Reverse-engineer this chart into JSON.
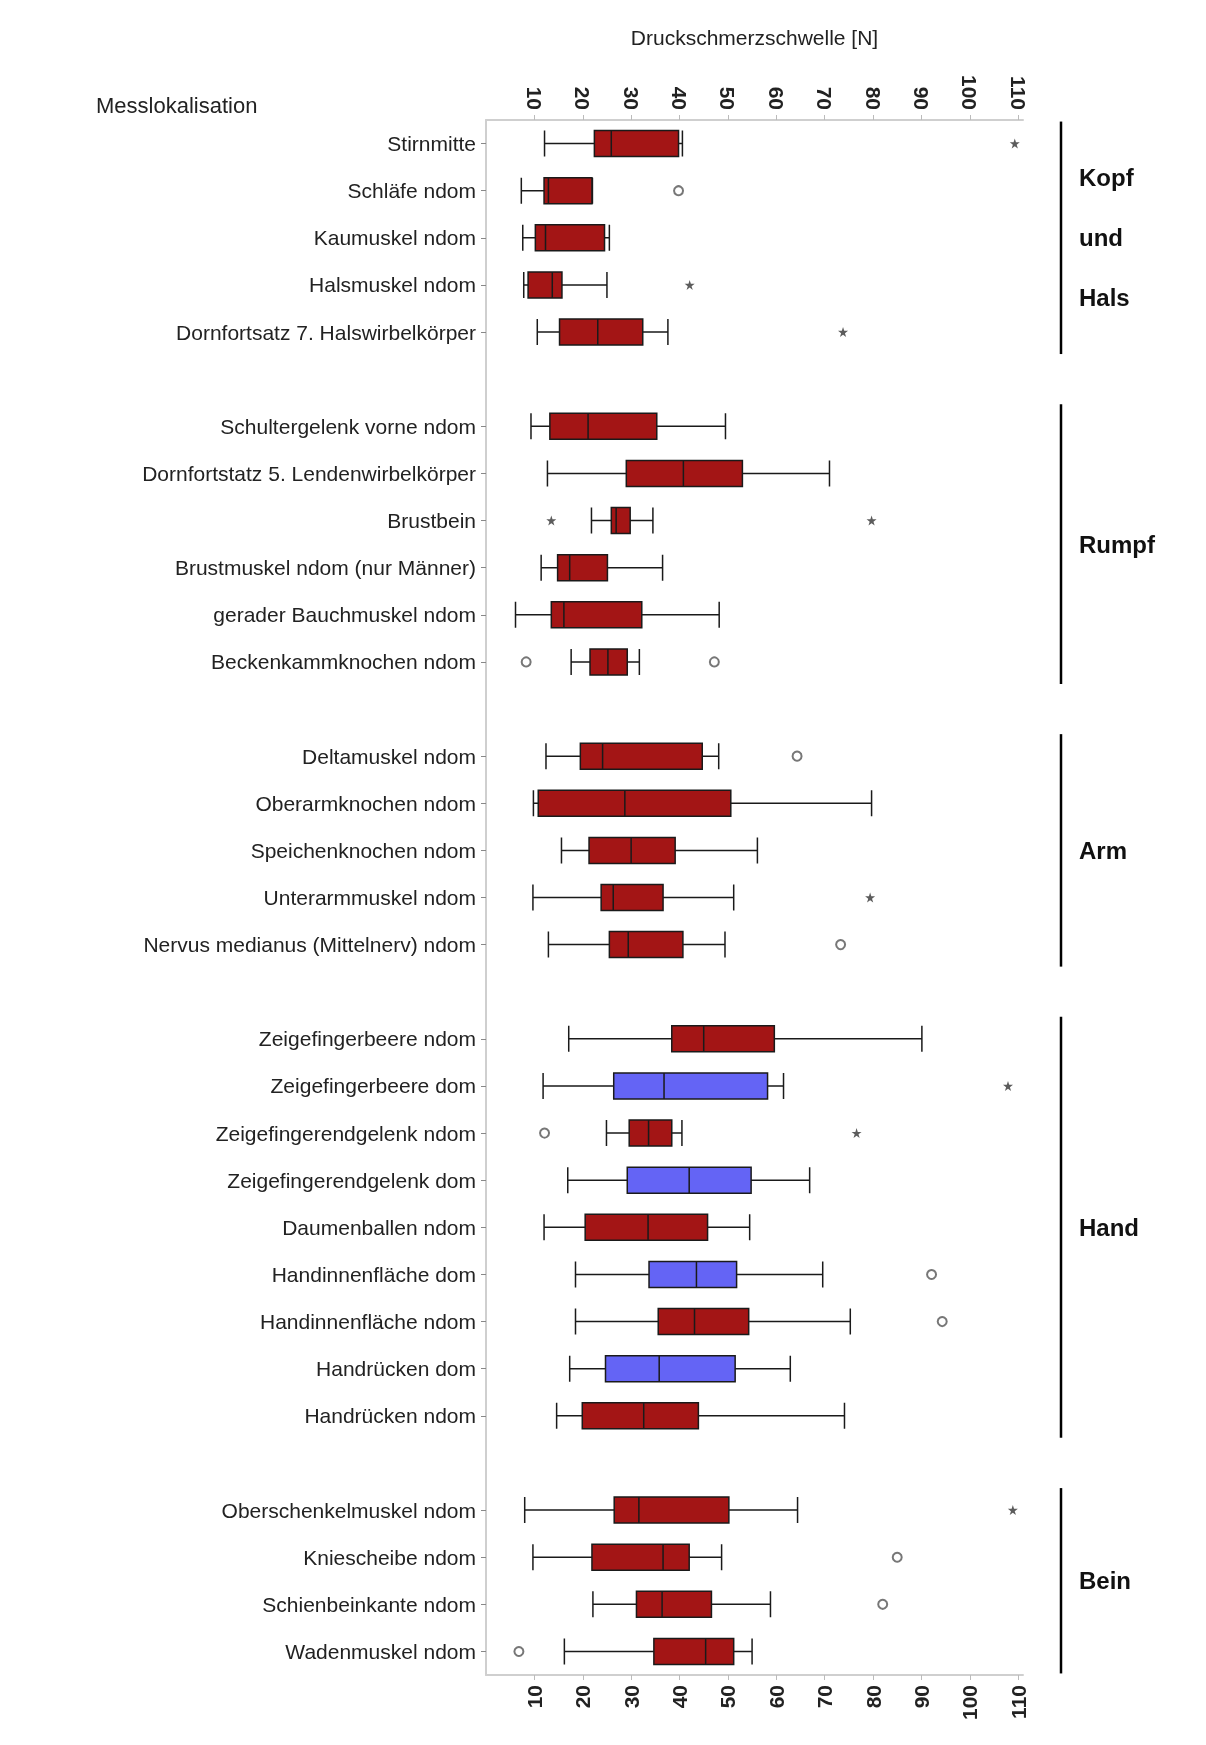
{
  "chart_data": {
    "type": "box",
    "orientation": "horizontal",
    "x2label": "Druckschmerzschwelle [N]",
    "ylabel": "Messlokalisation",
    "categories": [
      "Stirnmitte",
      "Schläfe ndom",
      "Kaumuskel ndom",
      "Halsmuskel ndom",
      "Dornfortsatz 7. Halswirbelkörper",
      null,
      "Schultergelenk vorne ndom",
      "Dornfortstatz 5. Lendenwirbelkörper",
      "Brustbein",
      "Brustmuskel ndom (nur Männer)",
      "gerader Bauchmuskel ndom",
      "Beckenkammknochen ndom",
      null,
      "Deltamuskel ndom",
      "Oberarmknochen ndom",
      "Speichenknochen ndom",
      "Unterarmmuskel ndom",
      "Nervus medianus (Mittelnerv) ndom",
      null,
      "Zeigefingerbeere ndom",
      "Zeigefingerbeere dom",
      "Zeigefingerendgelenk ndom",
      "Zeigefingerendgelenk dom",
      "Daumenballen ndom",
      "Handinnenfläche dom",
      "Handinnenfläche ndom",
      "Handrücken dom",
      "Handrücken ndom",
      null,
      "Oberschenkelmuskel ndom",
      "Kniescheibe ndom",
      "Schienbeinkante ndom",
      "Wadenmuskel ndom"
    ],
    "boxes": [
      {
        "low": 12.1,
        "q1": 22.4,
        "median": 25.9,
        "q3": 39.8,
        "high": 40.6
      },
      {
        "low": 7.3,
        "q1": 12.0,
        "median": 12.9,
        "q3": 21.9,
        "high": 22.0,
        "outliers": [
          39.8
        ]
      },
      {
        "low": 7.6,
        "q1": 10.2,
        "median": 12.3,
        "q3": 24.5,
        "high": 25.5
      },
      {
        "low": 7.8,
        "q1": 8.7,
        "median": 13.7,
        "q3": 15.7,
        "high": 25.0
      },
      {
        "low": 10.6,
        "q1": 15.2,
        "median": 23.1,
        "q3": 32.4,
        "high": 37.6
      },
      null,
      {
        "low": 9.3,
        "q1": 13.2,
        "median": 21.1,
        "q3": 35.3,
        "high": 49.5
      },
      {
        "low": 12.7,
        "q1": 29.0,
        "median": 40.8,
        "q3": 53.0,
        "high": 71.0
      },
      {
        "low": 21.8,
        "q1": 25.9,
        "median": 26.9,
        "q3": 29.8,
        "high": 34.5
      },
      {
        "low": 11.4,
        "q1": 14.8,
        "median": 17.3,
        "q3": 25.1,
        "high": 36.5
      },
      {
        "low": 6.1,
        "q1": 13.5,
        "median": 16.1,
        "q3": 32.2,
        "high": 48.2
      },
      {
        "low": 17.6,
        "q1": 21.5,
        "median": 25.2,
        "q3": 29.2,
        "high": 31.7,
        "outliers": [
          8.3,
          47.2
        ]
      },
      null,
      {
        "low": 12.4,
        "q1": 19.5,
        "median": 24.1,
        "q3": 44.7,
        "high": 48.1,
        "outliers": [
          64.3
        ]
      },
      {
        "low": 9.8,
        "q1": 10.8,
        "median": 28.7,
        "q3": 50.6,
        "high": 79.7
      },
      {
        "low": 15.6,
        "q1": 21.3,
        "median": 30.0,
        "q3": 39.1,
        "high": 56.1
      },
      {
        "low": 9.7,
        "q1": 23.8,
        "median": 26.3,
        "q3": 36.6,
        "high": 51.2
      },
      {
        "low": 12.9,
        "q1": 25.5,
        "median": 29.4,
        "q3": 40.7,
        "high": 49.4,
        "outliers": [
          73.3
        ]
      },
      null,
      {
        "low": 17.1,
        "q1": 38.4,
        "median": 45.0,
        "q3": 59.6,
        "high": 90.1
      },
      {
        "low": 11.8,
        "q1": 26.4,
        "median": 36.8,
        "q3": 58.2,
        "high": 61.5
      },
      {
        "low": 24.9,
        "q1": 29.6,
        "median": 33.6,
        "q3": 38.4,
        "high": 40.5,
        "outliers": [
          12.1
        ]
      },
      {
        "low": 16.9,
        "q1": 29.2,
        "median": 42.0,
        "q3": 54.8,
        "high": 66.9
      },
      {
        "low": 12.0,
        "q1": 20.5,
        "median": 33.5,
        "q3": 45.8,
        "high": 54.5
      },
      {
        "low": 18.5,
        "q1": 33.7,
        "median": 43.5,
        "q3": 51.8,
        "high": 69.6,
        "outliers": [
          92.1
        ]
      },
      {
        "low": 18.5,
        "q1": 35.6,
        "median": 43.1,
        "q3": 54.3,
        "high": 75.3,
        "outliers": [
          94.3
        ]
      },
      {
        "low": 17.3,
        "q1": 24.7,
        "median": 35.8,
        "q3": 51.5,
        "high": 62.9
      },
      {
        "low": 14.6,
        "q1": 19.9,
        "median": 32.6,
        "q3": 43.9,
        "high": 74.1
      },
      null,
      {
        "low": 8.0,
        "q1": 26.5,
        "median": 31.6,
        "q3": 50.2,
        "high": 64.4
      },
      {
        "low": 9.7,
        "q1": 21.9,
        "median": 36.6,
        "q3": 42.0,
        "high": 48.7,
        "outliers": [
          85.0
        ]
      },
      {
        "low": 22.1,
        "q1": 31.1,
        "median": 36.4,
        "q3": 46.6,
        "high": 58.8,
        "outliers": [
          82.0
        ]
      },
      {
        "low": 16.2,
        "q1": 34.7,
        "median": 45.4,
        "q3": 51.2,
        "high": 55.0,
        "outliers": [
          6.8
        ]
      }
    ],
    "colors": [
      "#a31515",
      "#a31515",
      "#a31515",
      "#a31515",
      "#a31515",
      null,
      "#a31515",
      "#a31515",
      "#a31515",
      "#a31515",
      "#a31515",
      "#a31515",
      null,
      "#a31515",
      "#a31515",
      "#a31515",
      "#a31515",
      "#a31515",
      null,
      "#a31515",
      "#6464f5",
      "#a31515",
      "#6464f5",
      "#a31515",
      "#6464f5",
      "#a31515",
      "#6464f5",
      "#a31515",
      null,
      "#a31515",
      "#a31515",
      "#a31515",
      "#a31515"
    ],
    "series": [
      {
        "type": "scatter",
        "marker": "star",
        "color": "#333333",
        "x": [
          "Stirnmitte",
          "Halsmuskel ndom",
          "Dornfortsatz 7. Halswirbelkörper",
          "Brustbein",
          "Brustbein",
          "Unterarmmuskel ndom",
          "Zeigefingerbeere dom",
          "Zeigefingerendgelenk ndom",
          "Oberschenkelmuskel ndom"
        ],
        "values": [
          109.3,
          42.1,
          73.8,
          13.5,
          79.7,
          79.4,
          107.9,
          76.6,
          108.9
        ]
      }
    ],
    "annotations": [
      "Kopf und Hals",
      "Rumpf",
      "Arm",
      "Hand",
      "Bein"
    ],
    "xlim": [
      0,
      111
    ],
    "xticks": [
      10,
      20,
      30,
      40,
      50,
      60,
      70,
      80,
      90,
      100,
      110
    ],
    "x2lim": [
      0,
      111
    ],
    "x2ticks": [
      10,
      20,
      30,
      40,
      50,
      60,
      70,
      80,
      90,
      100,
      110
    ],
    "grid": false
  }
}
